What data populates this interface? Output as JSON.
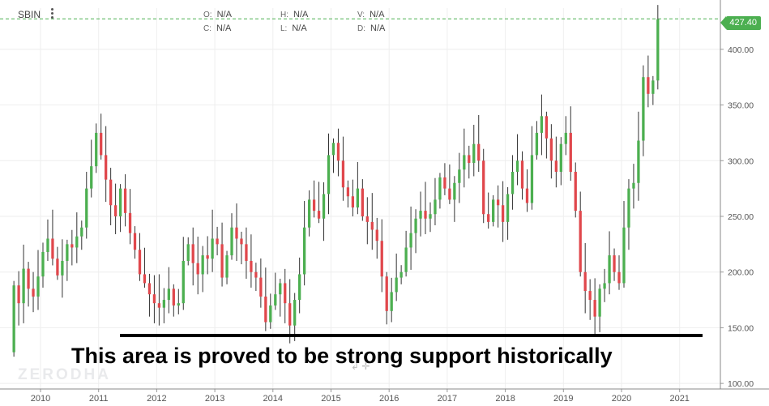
{
  "header": {
    "ticker": "SBIN",
    "menu_icon": "vertical-dots-icon",
    "ohlc": [
      {
        "key": "O:",
        "value": "N/A"
      },
      {
        "key": "H:",
        "value": "N/A"
      },
      {
        "key": "V:",
        "value": "N/A"
      },
      {
        "key": "C:",
        "value": "N/A"
      },
      {
        "key": "L:",
        "value": "N/A"
      },
      {
        "key": "D:",
        "value": "N/A"
      }
    ]
  },
  "last_price": "427.40",
  "watermark": "ZERODHA",
  "annotation": "This area is proved to be strong support historically",
  "colors": {
    "up": "#4caf50",
    "down": "#e0474c",
    "grid": "#eeeeee",
    "axis_text": "#555555",
    "price_line": "#4caf50",
    "support_line": "#000000"
  },
  "chart_data": {
    "type": "candlestick",
    "interval": "monthly",
    "x_ticks": [
      "2010",
      "2011",
      "2012",
      "2013",
      "2014",
      "2015",
      "2016",
      "2017",
      "2018",
      "2019",
      "2020",
      "2021"
    ],
    "y_ticks": [
      100,
      150,
      200,
      250,
      300,
      350,
      400
    ],
    "y_tick_labels": [
      "100.00",
      "150.00",
      "200.00",
      "250.00",
      "300.00",
      "350.00",
      "400.00"
    ],
    "ylim": [
      95,
      437
    ],
    "last_price": 427.4,
    "support_level": 143,
    "close": [
      188,
      172,
      203,
      185,
      178,
      196,
      218,
      230,
      212,
      197,
      210,
      225,
      222,
      232,
      240,
      275,
      295,
      325,
      305,
      283,
      260,
      250,
      275,
      253,
      235,
      220,
      198,
      190,
      180,
      172,
      168,
      175,
      185,
      170,
      172,
      210,
      225,
      208,
      198,
      215,
      212,
      230,
      225,
      195,
      215,
      240,
      230,
      225,
      210,
      200,
      195,
      178,
      155,
      170,
      180,
      190,
      172,
      152,
      175,
      198,
      240,
      265,
      255,
      248,
      270,
      305,
      316,
      300,
      276,
      268,
      258,
      275,
      250,
      245,
      238,
      228,
      196,
      165,
      182,
      195,
      200,
      222,
      235,
      248,
      255,
      248,
      252,
      265,
      285,
      275,
      265,
      280,
      292,
      305,
      298,
      315,
      300,
      252,
      245,
      265,
      260,
      245,
      270,
      290,
      300,
      275,
      262,
      305,
      325,
      340,
      320,
      300,
      290,
      315,
      325,
      290,
      255,
      200,
      183,
      175,
      160,
      185,
      190,
      215,
      200,
      190,
      240,
      275,
      280,
      318,
      375,
      360,
      372,
      427
    ]
  }
}
